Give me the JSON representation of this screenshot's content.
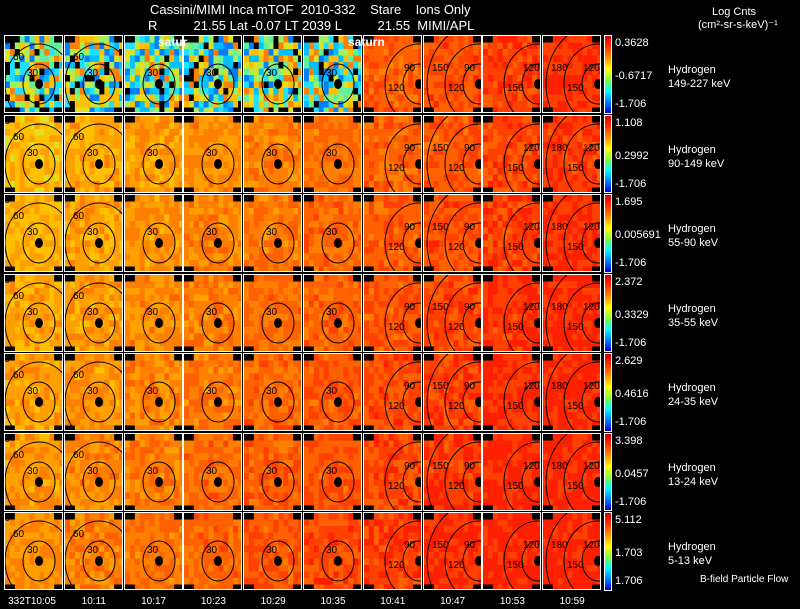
{
  "header": {
    "line1": "Cassini/MIMI Inca mTOF  2010-332    Stare    Ions Only",
    "line2": "R          21.55 Lat -0.07 LT 2039 L          21.55  MIMI/APL",
    "units_title": "Log Cnts",
    "units": "(cm²-sr-s-keV)⁻¹",
    "planet_labels": [
      "satur",
      "saturn"
    ]
  },
  "chart_data": {
    "type": "heatmap",
    "title": "Cassini/MIMI Inca mTOF 2010-332 Stare Ions Only",
    "xlabel": "Time",
    "time_ticks": [
      "332T10:05",
      "10:11",
      "10:17",
      "10:23",
      "10:29",
      "10:35",
      "10:41",
      "10:47",
      "10:53",
      "10:59"
    ],
    "contour_labels_by_column": [
      [
        "30",
        "60",
        "90"
      ],
      [
        "30",
        "60"
      ],
      [
        "30"
      ],
      [
        "30"
      ],
      [
        "30"
      ],
      [
        "30"
      ],
      [
        "90",
        "120"
      ],
      [
        "90",
        "120",
        "150"
      ],
      [
        "120",
        "150"
      ],
      [
        "120",
        "150",
        "180"
      ]
    ],
    "rows": [
      {
        "species": "Hydrogen",
        "energy": "149-227 keV",
        "max": "0.3628",
        "mid": "-0.6717",
        "min": "-1.706"
      },
      {
        "species": "Hydrogen",
        "energy": "90-149 keV",
        "max": "1.108",
        "mid": "0.2992",
        "min": "-1.706"
      },
      {
        "species": "Hydrogen",
        "energy": "55-90 keV",
        "max": "1.695",
        "mid": "0.005691",
        "min": "-1.706"
      },
      {
        "species": "Hydrogen",
        "energy": "35-55 keV",
        "max": "2.372",
        "mid": "0.3329",
        "min": "-1.706"
      },
      {
        "species": "Hydrogen",
        "energy": "24-35 keV",
        "max": "2.629",
        "mid": "0.4616",
        "min": "-1.706"
      },
      {
        "species": "Hydrogen",
        "energy": "13-24 keV",
        "max": "3.398",
        "mid": "0.0457",
        "min": "-1.706"
      },
      {
        "species": "Hydrogen",
        "energy": "5-13 keV",
        "max": "5.112",
        "mid": "1.703",
        "min": "1.706"
      }
    ],
    "footer_label": "B-field Particle Flow"
  }
}
